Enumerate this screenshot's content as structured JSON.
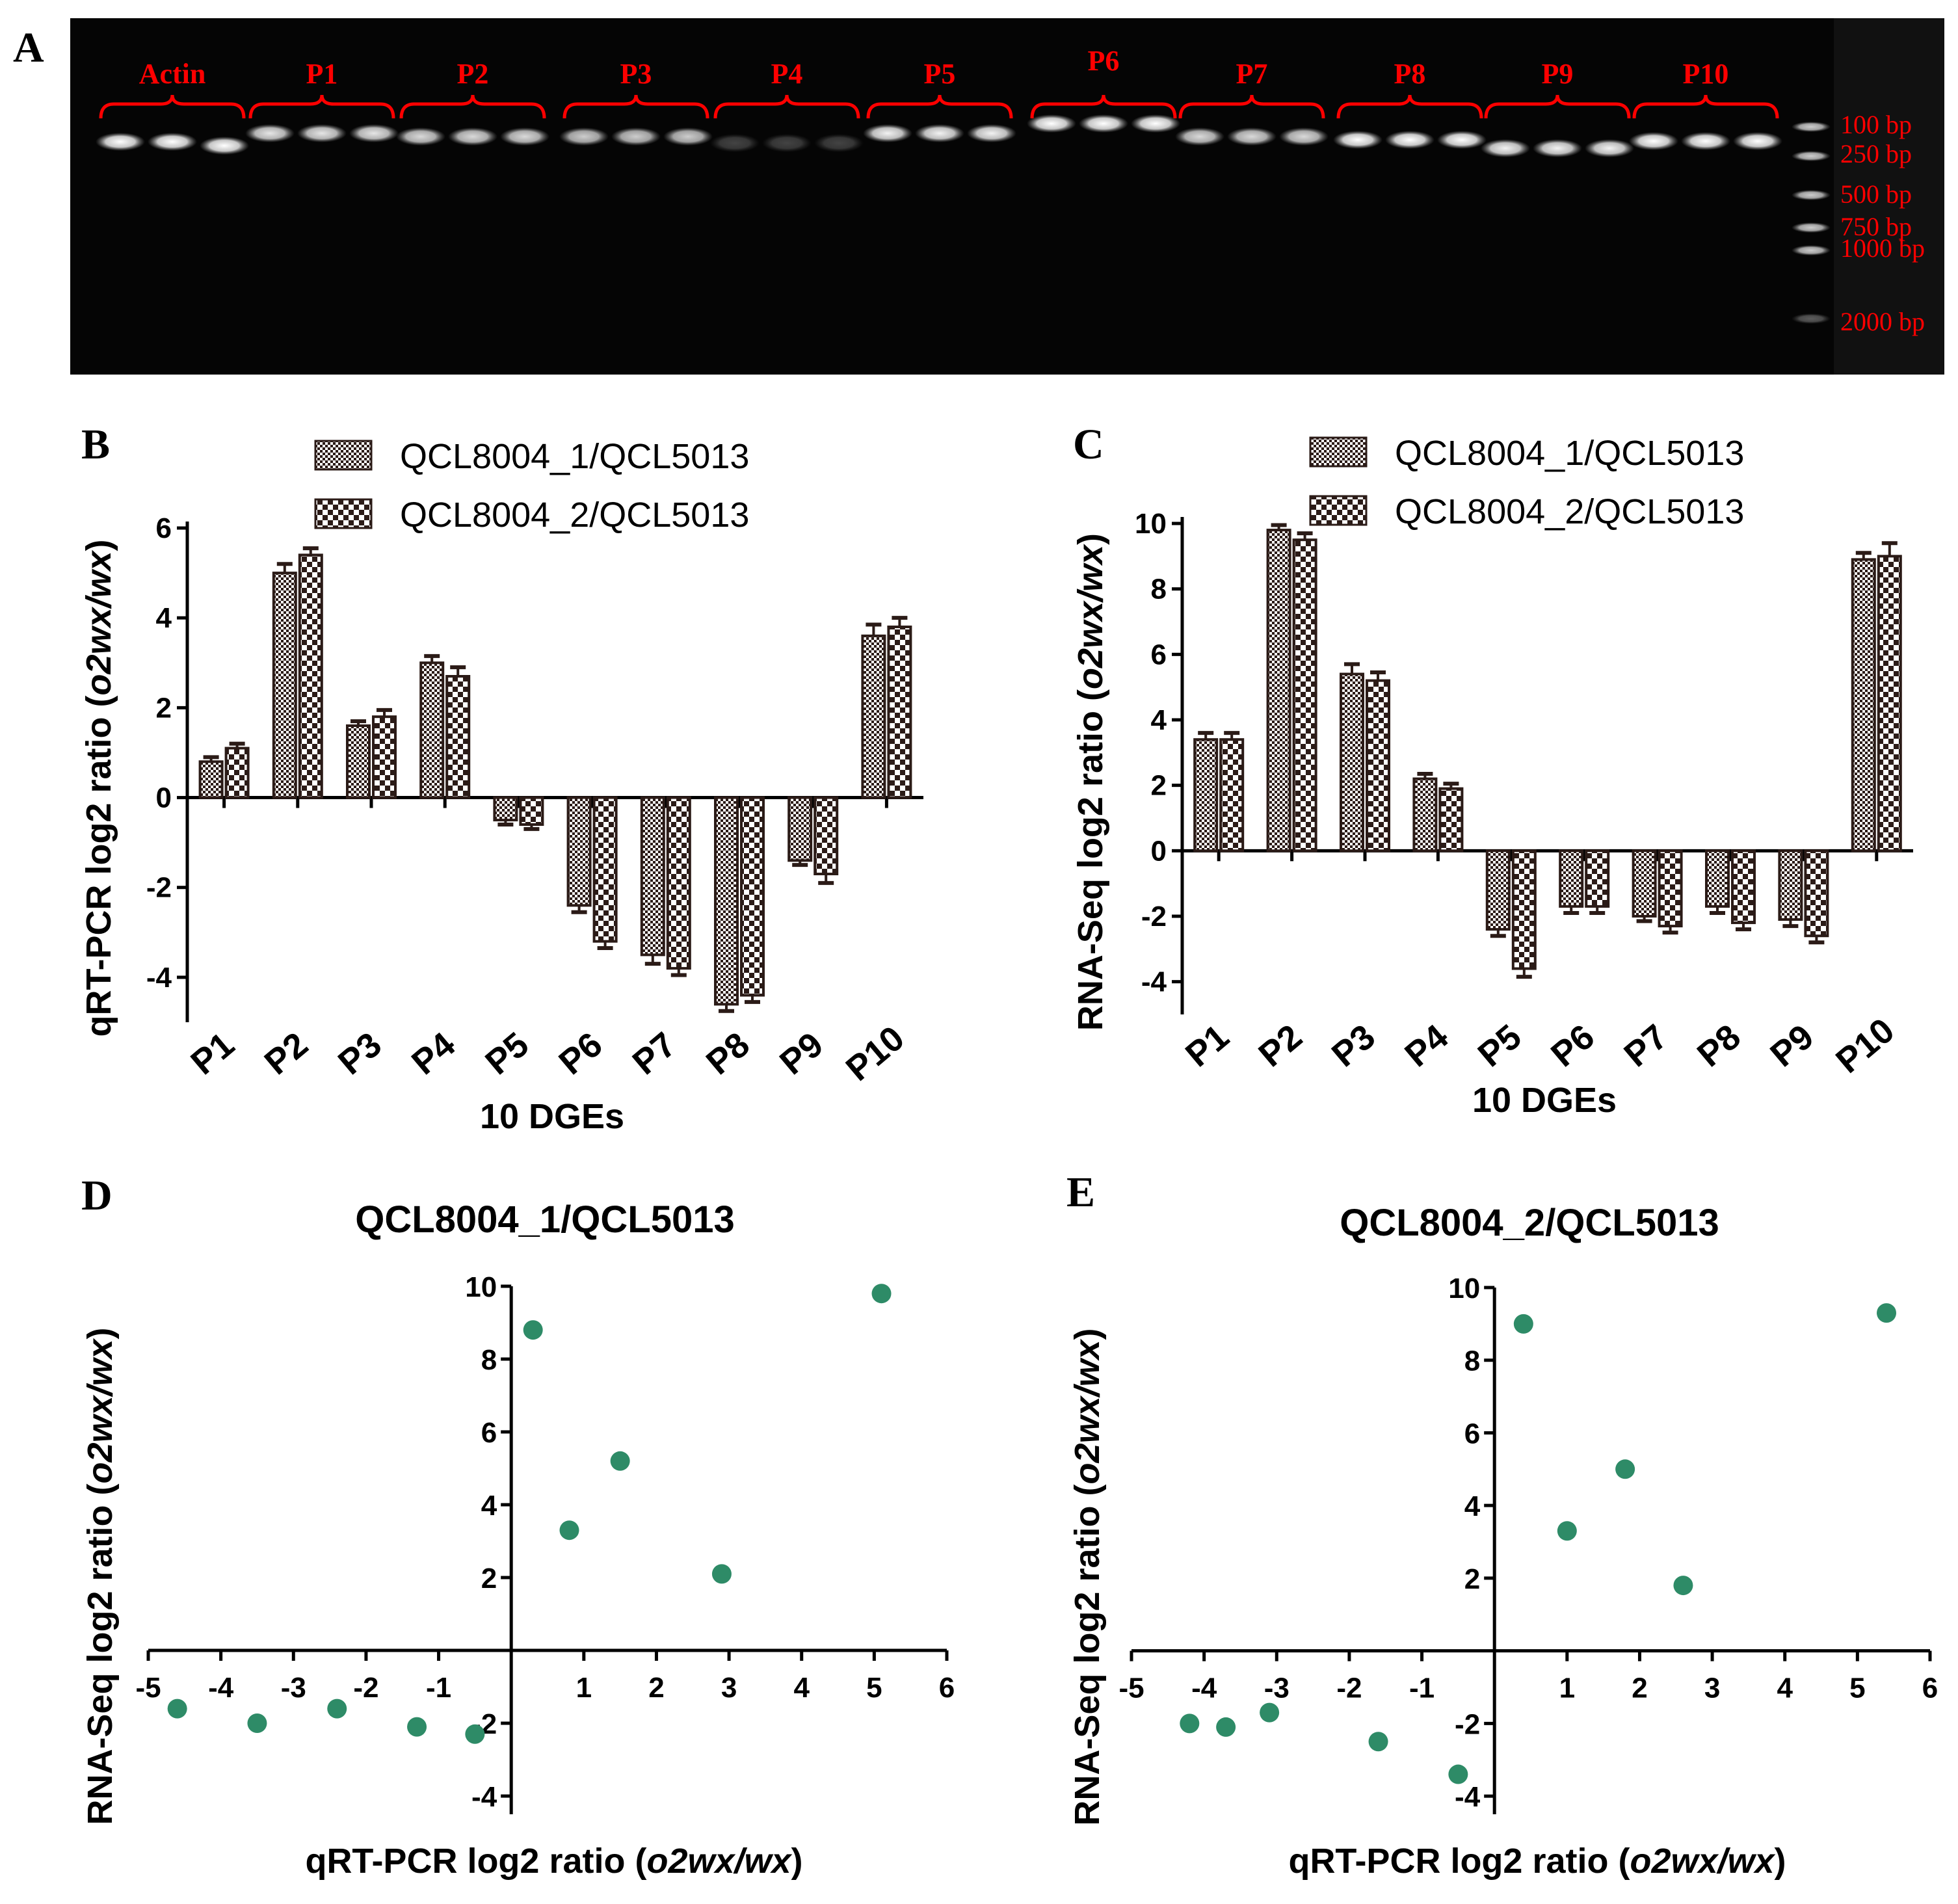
{
  "panel_labels": [
    "A",
    "B",
    "C",
    "D",
    "E"
  ],
  "colors": {
    "bar_dark": "#2b1b17",
    "dot": "#2e8b67",
    "gel_bg": "#050505",
    "gel_text": "#ff0000"
  },
  "gel": {
    "lane_groups": [
      "Actin",
      "P1",
      "P2",
      "P3",
      "P4",
      "P5",
      "P6",
      "P7",
      "P8",
      "P9",
      "P10"
    ],
    "ladder": [
      "100 bp",
      "250 bp",
      "500 bp",
      "750 bp",
      "1000 bp",
      "2000 bp"
    ]
  },
  "chart_data": [
    {
      "id": "B",
      "type": "bar",
      "categories": [
        "P1",
        "P2",
        "P3",
        "P4",
        "P5",
        "P6",
        "P7",
        "P8",
        "P9",
        "P10"
      ],
      "series": [
        {
          "name": "QCL8004_1/QCL5013",
          "values": [
            0.8,
            5.0,
            1.6,
            3.0,
            -0.5,
            -2.4,
            -3.5,
            -4.6,
            -1.4,
            3.6
          ],
          "errors": [
            0.1,
            0.2,
            0.1,
            0.15,
            0.1,
            0.15,
            0.2,
            0.15,
            0.1,
            0.25
          ]
        },
        {
          "name": "QCL8004_2/QCL5013",
          "values": [
            1.1,
            5.4,
            1.8,
            2.7,
            -0.6,
            -3.2,
            -3.8,
            -4.4,
            -1.7,
            3.8
          ],
          "errors": [
            0.1,
            0.15,
            0.15,
            0.2,
            0.1,
            0.15,
            0.15,
            0.15,
            0.2,
            0.2
          ]
        }
      ],
      "ylabel": "qRT-PCR log2 ratio (o2wx/wx)",
      "xlabel": "10 DGEs",
      "ylim": [
        -5,
        6
      ],
      "yticks": [
        -4,
        -2,
        0,
        2,
        4,
        6
      ]
    },
    {
      "id": "C",
      "type": "bar",
      "categories": [
        "P1",
        "P2",
        "P3",
        "P4",
        "P5",
        "P6",
        "P7",
        "P8",
        "P9",
        "P10"
      ],
      "series": [
        {
          "name": "QCL8004_1/QCL5013",
          "values": [
            3.4,
            9.8,
            5.4,
            2.2,
            -2.4,
            -1.7,
            -2.0,
            -1.7,
            -2.1,
            8.9
          ],
          "errors": [
            0.2,
            0.15,
            0.3,
            0.15,
            0.2,
            0.2,
            0.15,
            0.2,
            0.2,
            0.2
          ]
        },
        {
          "name": "QCL8004_2/QCL5013",
          "values": [
            3.4,
            9.5,
            5.2,
            1.9,
            -3.6,
            -1.7,
            -2.3,
            -2.2,
            -2.6,
            9.0
          ],
          "errors": [
            0.2,
            0.2,
            0.25,
            0.15,
            0.25,
            0.2,
            0.2,
            0.2,
            0.2,
            0.4
          ]
        }
      ],
      "ylabel": "RNA-Seq log2 ratio (o2wx/wx)",
      "xlabel": "10 DGEs",
      "ylim": [
        -5,
        10
      ],
      "yticks": [
        -4,
        -2,
        0,
        2,
        4,
        6,
        8,
        10
      ]
    },
    {
      "id": "D",
      "type": "scatter",
      "title": "QCL8004_1/QCL5013",
      "x": [
        0.3,
        0.8,
        1.5,
        2.9,
        5.1,
        -4.6,
        -3.5,
        -2.4,
        -1.3,
        -0.5
      ],
      "y": [
        8.8,
        3.3,
        5.2,
        2.1,
        9.8,
        -1.6,
        -2.0,
        -1.6,
        -2.1,
        -2.3
      ],
      "xlabel": "qRT-PCR log2 ratio (o2wx/wx)",
      "ylabel": "RNA-Seq log2 ratio (o2wx/wx)",
      "xlim": [
        -5,
        6
      ],
      "ylim": [
        -4.5,
        10
      ],
      "xticks": [
        -5,
        -4,
        -3,
        -2,
        -1,
        1,
        2,
        3,
        4,
        5,
        6
      ],
      "yticks": [
        -4,
        -2,
        2,
        4,
        6,
        8,
        10
      ]
    },
    {
      "id": "E",
      "type": "scatter",
      "title": "QCL8004_2/QCL5013",
      "x": [
        0.4,
        1.0,
        1.8,
        2.6,
        5.4,
        -4.2,
        -3.7,
        -3.1,
        -1.6,
        -0.5
      ],
      "y": [
        9.0,
        3.3,
        5.0,
        1.8,
        9.3,
        -2.0,
        -2.1,
        -1.7,
        -2.5,
        -3.4
      ],
      "xlabel": "qRT-PCR log2 ratio (o2wx/wx)",
      "ylabel": "RNA-Seq log2 ratio (o2wx/wx)",
      "xlim": [
        -5,
        6
      ],
      "ylim": [
        -4.5,
        10
      ],
      "xticks": [
        -5,
        -4,
        -3,
        -2,
        -1,
        1,
        2,
        3,
        4,
        5,
        6
      ],
      "yticks": [
        -4,
        -2,
        2,
        4,
        6,
        8,
        10
      ]
    }
  ]
}
